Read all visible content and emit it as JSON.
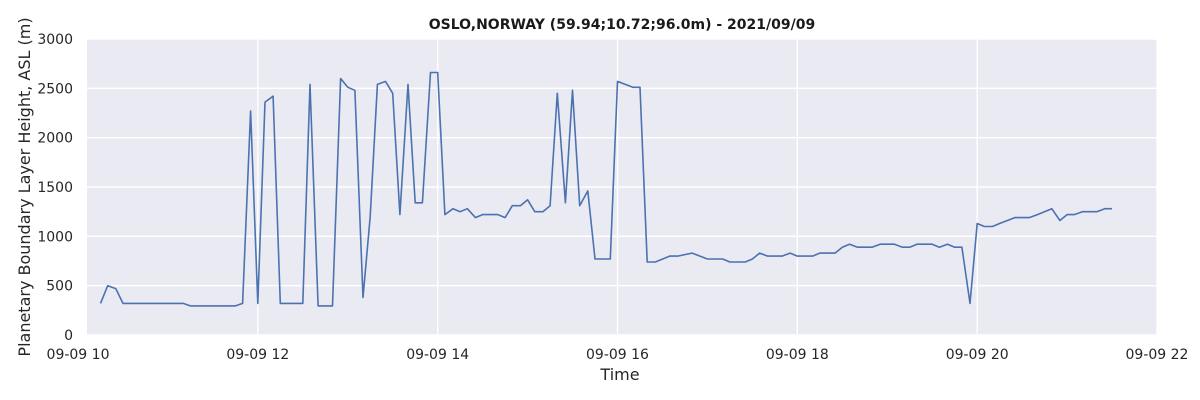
{
  "chart_data": {
    "type": "line",
    "title": "OSLO,NORWAY (59.94;10.72;96.0m) - 2021/09/09",
    "xlabel": "Time",
    "ylabel": "Planetary Boundary Layer Height, ASL (m)",
    "xlim": [
      10.1,
      22.0
    ],
    "ylim": [
      0,
      3000
    ],
    "grid": true,
    "x_ticks": [
      {
        "value": 10,
        "label": "09-09 10"
      },
      {
        "value": 12,
        "label": "09-09 12"
      },
      {
        "value": 14,
        "label": "09-09 14"
      },
      {
        "value": 16,
        "label": "09-09 16"
      },
      {
        "value": 18,
        "label": "09-09 18"
      },
      {
        "value": 20,
        "label": "09-09 20"
      },
      {
        "value": 22,
        "label": "09-09 22"
      }
    ],
    "y_ticks": [
      {
        "value": 0,
        "label": "0"
      },
      {
        "value": 500,
        "label": "500"
      },
      {
        "value": 1000,
        "label": "1000"
      },
      {
        "value": 1500,
        "label": "1500"
      },
      {
        "value": 2000,
        "label": "2000"
      },
      {
        "value": 2500,
        "label": "2500"
      },
      {
        "value": 3000,
        "label": "3000"
      }
    ],
    "series": [
      {
        "color": "#4c72b0",
        "points": [
          [
            10.25,
            320
          ],
          [
            10.33,
            500
          ],
          [
            10.42,
            470
          ],
          [
            10.5,
            320
          ],
          [
            10.67,
            320
          ],
          [
            10.83,
            320
          ],
          [
            11.0,
            320
          ],
          [
            11.17,
            320
          ],
          [
            11.25,
            295
          ],
          [
            11.42,
            295
          ],
          [
            11.58,
            295
          ],
          [
            11.75,
            295
          ],
          [
            11.83,
            320
          ],
          [
            11.92,
            2270
          ],
          [
            12.0,
            320
          ],
          [
            12.08,
            2360
          ],
          [
            12.17,
            2420
          ],
          [
            12.25,
            320
          ],
          [
            12.42,
            320
          ],
          [
            12.5,
            320
          ],
          [
            12.58,
            2540
          ],
          [
            12.67,
            295
          ],
          [
            12.83,
            295
          ],
          [
            12.92,
            2600
          ],
          [
            13.0,
            2510
          ],
          [
            13.08,
            2480
          ],
          [
            13.17,
            380
          ],
          [
            13.25,
            1200
          ],
          [
            13.33,
            2540
          ],
          [
            13.42,
            2570
          ],
          [
            13.5,
            2450
          ],
          [
            13.58,
            1220
          ],
          [
            13.67,
            2540
          ],
          [
            13.75,
            1340
          ],
          [
            13.83,
            1340
          ],
          [
            13.92,
            2660
          ],
          [
            14.0,
            2660
          ],
          [
            14.08,
            1220
          ],
          [
            14.17,
            1280
          ],
          [
            14.25,
            1250
          ],
          [
            14.33,
            1280
          ],
          [
            14.42,
            1190
          ],
          [
            14.5,
            1220
          ],
          [
            14.67,
            1220
          ],
          [
            14.75,
            1190
          ],
          [
            14.83,
            1310
          ],
          [
            14.92,
            1310
          ],
          [
            15.0,
            1370
          ],
          [
            15.08,
            1250
          ],
          [
            15.17,
            1250
          ],
          [
            15.25,
            1310
          ],
          [
            15.33,
            2450
          ],
          [
            15.42,
            1340
          ],
          [
            15.5,
            2480
          ],
          [
            15.58,
            1310
          ],
          [
            15.67,
            1460
          ],
          [
            15.75,
            770
          ],
          [
            15.92,
            770
          ],
          [
            16.0,
            2570
          ],
          [
            16.17,
            2510
          ],
          [
            16.25,
            2510
          ],
          [
            16.33,
            740
          ],
          [
            16.42,
            740
          ],
          [
            16.58,
            800
          ],
          [
            16.67,
            800
          ],
          [
            16.83,
            830
          ],
          [
            17.0,
            770
          ],
          [
            17.17,
            770
          ],
          [
            17.25,
            740
          ],
          [
            17.42,
            740
          ],
          [
            17.5,
            770
          ],
          [
            17.58,
            830
          ],
          [
            17.67,
            800
          ],
          [
            17.83,
            800
          ],
          [
            17.92,
            830
          ],
          [
            18.0,
            800
          ],
          [
            18.17,
            800
          ],
          [
            18.25,
            830
          ],
          [
            18.42,
            830
          ],
          [
            18.5,
            890
          ],
          [
            18.58,
            920
          ],
          [
            18.67,
            890
          ],
          [
            18.83,
            890
          ],
          [
            18.92,
            920
          ],
          [
            19.08,
            920
          ],
          [
            19.17,
            890
          ],
          [
            19.25,
            890
          ],
          [
            19.33,
            920
          ],
          [
            19.5,
            920
          ],
          [
            19.58,
            890
          ],
          [
            19.67,
            920
          ],
          [
            19.75,
            890
          ],
          [
            19.83,
            890
          ],
          [
            19.92,
            320
          ],
          [
            20.0,
            1130
          ],
          [
            20.08,
            1100
          ],
          [
            20.17,
            1100
          ],
          [
            20.25,
            1130
          ],
          [
            20.42,
            1190
          ],
          [
            20.58,
            1190
          ],
          [
            20.67,
            1220
          ],
          [
            20.83,
            1280
          ],
          [
            20.92,
            1160
          ],
          [
            21.0,
            1220
          ],
          [
            21.08,
            1220
          ],
          [
            21.17,
            1250
          ],
          [
            21.33,
            1250
          ],
          [
            21.42,
            1280
          ],
          [
            21.5,
            1280
          ]
        ]
      }
    ]
  }
}
